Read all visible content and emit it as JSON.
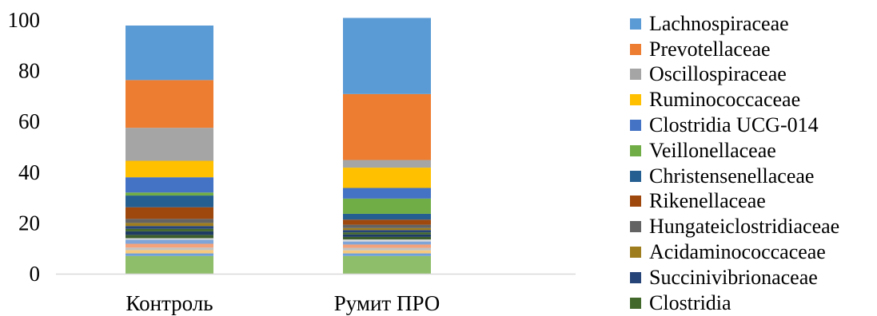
{
  "chart_data": {
    "type": "bar",
    "stacked": true,
    "categories": [
      "Контроль",
      "Румит ПРО"
    ],
    "ylim": [
      0,
      100
    ],
    "yticks": [
      0,
      20,
      40,
      60,
      80,
      100
    ],
    "grid": false,
    "legend_position": "right",
    "series": [
      {
        "name": "Clostridia",
        "color": "#43682b",
        "values": [
          1.0,
          0.8
        ]
      },
      {
        "name": "Succinivibrionaceae",
        "color": "#264478",
        "values": [
          1.1,
          0.9
        ]
      },
      {
        "name": "Acidaminococcaceae",
        "color": "#9e7d1f",
        "values": [
          1.2,
          0.8
        ]
      },
      {
        "name": "Hungateiclostridiaceae",
        "color": "#636363",
        "values": [
          1.6,
          1.3
        ]
      },
      {
        "name": "Rikenellaceae",
        "color": "#9e480e",
        "values": [
          4.6,
          2.0
        ]
      },
      {
        "name": "Christensenellaceae",
        "color": "#255e91",
        "values": [
          4.6,
          2.3
        ]
      },
      {
        "name": "Veillonellaceae",
        "color": "#70ad47",
        "values": [
          1.2,
          6.0
        ]
      },
      {
        "name": "Clostridia UCG-014",
        "color": "#4472c4",
        "values": [
          6.0,
          4.2
        ]
      },
      {
        "name": "Ruminococcaceae",
        "color": "#ffc000",
        "values": [
          6.5,
          8.0
        ]
      },
      {
        "name": "Oscillospiraceae",
        "color": "#a5a5a5",
        "values": [
          13.0,
          3.0
        ]
      },
      {
        "name": "Prevotellaceae",
        "color": "#ed7d31",
        "values": [
          18.8,
          26.0
        ]
      },
      {
        "name": "Lachnospiraceae",
        "color": "#5b9bd5",
        "values": [
          21.5,
          30.0
        ]
      }
    ],
    "minor_segments": [
      [
        {
          "color": "#8fbe6a",
          "value": 7.0
        },
        {
          "color": "#6f9fd8",
          "value": 1.0
        },
        {
          "color": "#f8c87c",
          "value": 1.3
        },
        {
          "color": "#c3c3c3",
          "value": 1.0
        },
        {
          "color": "#f4a27a",
          "value": 1.5
        },
        {
          "color": "#7ea4d8",
          "value": 1.6
        },
        {
          "color": "#d9d9d9",
          "value": 0.6
        },
        {
          "color": "#3b5e2b",
          "value": 1.3
        },
        {
          "color": "#1f3c64",
          "value": 1.4
        }
      ],
      [
        {
          "color": "#8fbe6a",
          "value": 7.0
        },
        {
          "color": "#6f9fd8",
          "value": 1.0
        },
        {
          "color": "#f8c87c",
          "value": 1.2
        },
        {
          "color": "#c3c3c3",
          "value": 1.0
        },
        {
          "color": "#f4a27a",
          "value": 1.3
        },
        {
          "color": "#7ea4d8",
          "value": 1.2
        },
        {
          "color": "#d9d9d9",
          "value": 0.8
        },
        {
          "color": "#3b5e2b",
          "value": 1.0
        },
        {
          "color": "#1f3c64",
          "value": 1.0
        }
      ]
    ]
  },
  "legend": {
    "items": [
      {
        "label": "Lachnospiraceae",
        "color": "#5b9bd5"
      },
      {
        "label": "Prevotellaceae",
        "color": "#ed7d31"
      },
      {
        "label": "Oscillospiraceae",
        "color": "#a5a5a5"
      },
      {
        "label": "Ruminococcaceae",
        "color": "#ffc000"
      },
      {
        "label": "Clostridia UCG-014",
        "color": "#4472c4"
      },
      {
        "label": "Veillonellaceae",
        "color": "#70ad47"
      },
      {
        "label": "Christensenellaceae",
        "color": "#255e91"
      },
      {
        "label": "Rikenellaceae",
        "color": "#9e480e"
      },
      {
        "label": "Hungateiclostridiaceae",
        "color": "#636363"
      },
      {
        "label": "Acidaminococcaceae",
        "color": "#9e7d1f"
      },
      {
        "label": "Succinivibrionaceae",
        "color": "#264478"
      },
      {
        "label": "Clostridia",
        "color": "#43682b"
      }
    ]
  }
}
